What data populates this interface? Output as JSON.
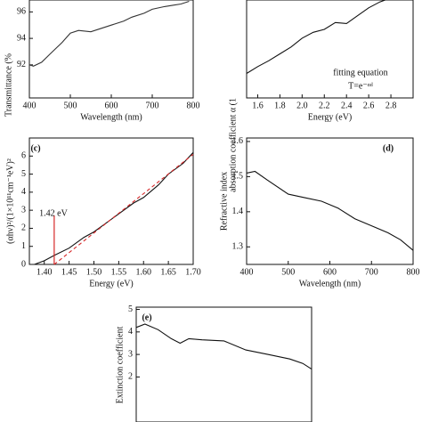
{
  "chart_data": [
    {
      "type": "line",
      "xlabel": "Wavelength (nm)",
      "ylabel": "Transmittance (%",
      "xlim": [
        400,
        800
      ],
      "ylim": [
        89.5,
        96.9
      ],
      "xticks": [
        400,
        500,
        600,
        700,
        800
      ],
      "yticks": [
        92,
        94,
        96
      ],
      "series": [
        {
          "color": "#333333",
          "x": [
            400,
            410,
            430,
            450,
            480,
            500,
            520,
            550,
            580,
            600,
            630,
            650,
            680,
            700,
            730,
            750,
            770,
            790
          ],
          "values": [
            92.0,
            91.9,
            92.2,
            92.8,
            93.7,
            94.4,
            94.6,
            94.5,
            94.8,
            95.0,
            95.3,
            95.6,
            95.9,
            96.2,
            96.4,
            96.5,
            96.6,
            96.8
          ]
        }
      ]
    },
    {
      "type": "line",
      "xlabel": "Energy (eV)",
      "ylabel": "absorption coefficient α (1",
      "annotations": [
        "fitting equation",
        "T=e⁻ᵅᵈ"
      ],
      "xlim": [
        1.5,
        3.0
      ],
      "ylim": [
        0,
        10
      ],
      "xticks": [
        1.6,
        1.8,
        {
          "value": 2.0,
          "label": "2.0"
        },
        2.2,
        2.4,
        2.6,
        2.8
      ],
      "series": [
        {
          "color": "#111111",
          "x": [
            1.5,
            1.6,
            1.7,
            1.8,
            1.9,
            2.0,
            2.1,
            2.2,
            2.3,
            2.4,
            2.5,
            2.6,
            2.7,
            2.75
          ],
          "values": [
            2.5,
            3.2,
            3.8,
            4.5,
            5.2,
            6.1,
            6.7,
            7.0,
            7.7,
            7.6,
            8.4,
            9.2,
            9.8,
            10.0
          ]
        }
      ]
    },
    {
      "type": "line",
      "label": "(c)",
      "xlabel": "Energy (eV)",
      "ylabel": "(αhν)²/(1×10¹¹cm⁻¹eV)²",
      "xlim": [
        1.37,
        1.7
      ],
      "ylim": [
        0,
        7
      ],
      "xticks": [
        {
          "value": 1.4,
          "label": "1.40"
        },
        1.45,
        {
          "value": 1.5,
          "label": "1.50"
        },
        1.55,
        {
          "value": 1.6,
          "label": "1.60"
        },
        1.65,
        {
          "value": 1.7,
          "label": "1.70"
        }
      ],
      "yticks": [
        0,
        1,
        2,
        3,
        4,
        5,
        6
      ],
      "marker": {
        "x": 1.42,
        "label": "1.42 eV",
        "color": "#d62728"
      },
      "series": [
        {
          "color": "#111111",
          "x": [
            1.38,
            1.4,
            1.42,
            1.45,
            1.48,
            1.5,
            1.52,
            1.55,
            1.58,
            1.6,
            1.63,
            1.65,
            1.68,
            1.7
          ],
          "values": [
            0,
            0.2,
            0.5,
            0.9,
            1.5,
            1.8,
            2.2,
            2.8,
            3.4,
            3.7,
            4.4,
            5.0,
            5.6,
            6.2
          ]
        },
        {
          "color": "#d62728",
          "dashed": true,
          "x": [
            1.42,
            1.7
          ],
          "values": [
            0,
            6.1
          ]
        }
      ]
    },
    {
      "type": "line",
      "label": "(d)",
      "xlabel": "Wavelength (nm)",
      "ylabel": "Refractive index",
      "xlim": [
        400,
        800
      ],
      "ylim": [
        1.25,
        1.61
      ],
      "xticks": [
        400,
        500,
        600,
        700,
        800
      ],
      "yticks": [
        1.3,
        1.4,
        1.5,
        1.6
      ],
      "series": [
        {
          "color": "#111111",
          "x": [
            400,
            420,
            450,
            500,
            540,
            580,
            620,
            660,
            700,
            740,
            770,
            800
          ],
          "values": [
            1.51,
            1.515,
            1.49,
            1.45,
            1.44,
            1.43,
            1.41,
            1.38,
            1.36,
            1.34,
            1.32,
            1.29
          ]
        }
      ]
    },
    {
      "type": "line",
      "label": "(e)",
      "ylabel": "Extinction coefficient",
      "xlim": [
        400,
        800
      ],
      "ylim": [
        0,
        5.1
      ],
      "yticks": [
        2,
        3,
        4,
        5
      ],
      "series": [
        {
          "color": "#111111",
          "x": [
            400,
            420,
            450,
            480,
            500,
            520,
            550,
            600,
            650,
            700,
            750,
            780,
            800
          ],
          "values": [
            4.2,
            4.35,
            4.1,
            3.7,
            3.5,
            3.7,
            3.65,
            3.6,
            3.2,
            3.0,
            2.8,
            2.6,
            2.35
          ]
        }
      ]
    }
  ]
}
